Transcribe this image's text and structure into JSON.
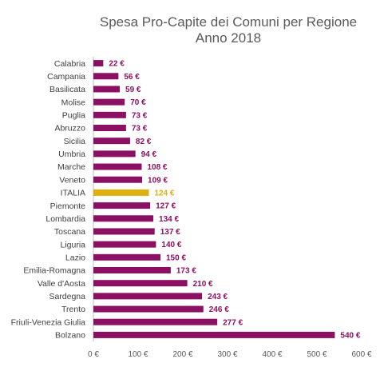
{
  "chart_data": {
    "type": "bar",
    "orientation": "horizontal",
    "title": "Spesa Pro-Capite dei Comuni per Regione",
    "subtitle": "Anno 2018",
    "categories": [
      "Calabria",
      "Campania",
      "Basilicata",
      "Molise",
      "Puglia",
      "Abruzzo",
      "Sicilia",
      "Umbria",
      "Marche",
      "Veneto",
      "ITALIA",
      "Piemonte",
      "Lombardia",
      "Toscana",
      "Liguria",
      "Lazio",
      "Emilia-Romagna",
      "Valle d'Aosta",
      "Sardegna",
      "Trento",
      "Friuli-Venezia Giulia",
      "Bolzano"
    ],
    "values": [
      22,
      56,
      59,
      70,
      73,
      73,
      82,
      94,
      108,
      109,
      124,
      127,
      134,
      137,
      140,
      150,
      173,
      210,
      243,
      246,
      277,
      540
    ],
    "value_labels": [
      "22 €",
      "56 €",
      "59 €",
      "70 €",
      "73 €",
      "73 €",
      "82 €",
      "94 €",
      "108 €",
      "109 €",
      "124 €",
      "127 €",
      "134 €",
      "137 €",
      "140 €",
      "150 €",
      "173 €",
      "210 €",
      "243 €",
      "246 €",
      "277 €",
      "540 €"
    ],
    "highlight_category": "ITALIA",
    "xlim": [
      0,
      600
    ],
    "x_ticks": [
      0,
      100,
      200,
      300,
      400,
      500,
      600
    ],
    "x_tick_labels": [
      "0 €",
      "100 €",
      "200 €",
      "300 €",
      "400 €",
      "500 €",
      "600 €"
    ],
    "grid": false,
    "legend": "none",
    "colors": {
      "bar": "#8B1063",
      "highlight": "#DDAF0F",
      "axis": "#BFBFBF"
    }
  }
}
